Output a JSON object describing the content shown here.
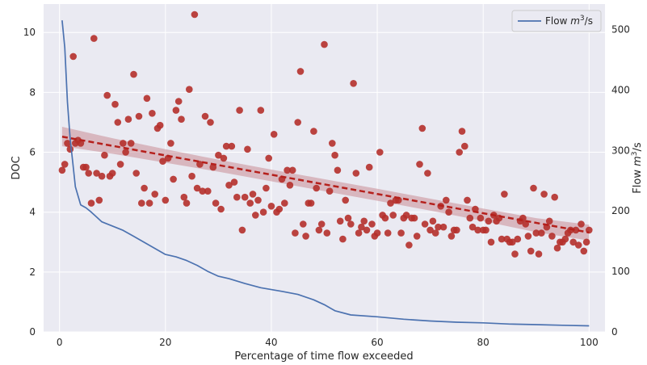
{
  "chart_data": {
    "type": "scatter",
    "xlabel": "Percentage of time flow exceeded",
    "ylabel_left": "DOC",
    "ylabel_right_prefix": "Flow ",
    "ylabel_right_unit": "m",
    "ylabel_right_exp": "3",
    "ylabel_right_suffix": "/s",
    "xlim": [
      -3,
      103
    ],
    "ylim_left": [
      0,
      10.95
    ],
    "ylim_right": [
      0,
      542
    ],
    "xticks": [
      0,
      20,
      40,
      60,
      80,
      100
    ],
    "yticks_left": [
      0,
      2,
      4,
      6,
      8,
      10
    ],
    "yticks_right": [
      0,
      100,
      200,
      300,
      400,
      500
    ],
    "grid": true,
    "legend_position": "top-right",
    "colors": {
      "background": "#eaeaf2",
      "grid": "#ffffff",
      "scatter": "#b5302b",
      "trend": "#b5201c",
      "band": "#c98d96",
      "flow": "#4c72b0"
    },
    "legend": {
      "label_prefix": "Flow ",
      "label_unit": "m",
      "label_exp": "3",
      "label_suffix": "/s"
    },
    "scatter_points": [
      [
        0.5,
        5.4
      ],
      [
        1.0,
        5.6
      ],
      [
        1.5,
        6.3
      ],
      [
        2.0,
        6.1
      ],
      [
        2.6,
        9.2
      ],
      [
        3.0,
        6.3
      ],
      [
        3.5,
        6.4
      ],
      [
        4.0,
        6.3
      ],
      [
        4.5,
        5.5
      ],
      [
        5.0,
        5.5
      ],
      [
        5.5,
        5.3
      ],
      [
        6.0,
        4.3
      ],
      [
        6.5,
        9.8
      ],
      [
        7.0,
        5.3
      ],
      [
        7.5,
        4.4
      ],
      [
        8.0,
        5.2
      ],
      [
        8.5,
        5.9
      ],
      [
        9.0,
        7.9
      ],
      [
        9.5,
        5.2
      ],
      [
        10.0,
        5.3
      ],
      [
        10.5,
        7.6
      ],
      [
        11.0,
        7.0
      ],
      [
        11.5,
        5.6
      ],
      [
        12.0,
        6.3
      ],
      [
        12.5,
        6.0
      ],
      [
        13.0,
        7.1
      ],
      [
        13.5,
        6.3
      ],
      [
        14.0,
        8.6
      ],
      [
        14.5,
        5.3
      ],
      [
        15.0,
        7.2
      ],
      [
        15.5,
        4.3
      ],
      [
        16.0,
        4.8
      ],
      [
        16.5,
        7.8
      ],
      [
        17.0,
        4.3
      ],
      [
        17.5,
        7.3
      ],
      [
        18.0,
        4.6
      ],
      [
        18.5,
        6.8
      ],
      [
        19.0,
        6.9
      ],
      [
        19.5,
        5.7
      ],
      [
        20.0,
        4.4
      ],
      [
        20.5,
        5.8
      ],
      [
        21.0,
        6.3
      ],
      [
        21.5,
        5.1
      ],
      [
        22.0,
        7.4
      ],
      [
        22.5,
        7.7
      ],
      [
        23.0,
        7.1
      ],
      [
        23.5,
        4.5
      ],
      [
        24.0,
        4.3
      ],
      [
        24.5,
        8.1
      ],
      [
        25.0,
        5.2
      ],
      [
        25.5,
        10.6
      ],
      [
        26.0,
        4.8
      ],
      [
        26.5,
        5.6
      ],
      [
        27.0,
        4.7
      ],
      [
        27.5,
        7.2
      ],
      [
        28.0,
        4.7
      ],
      [
        28.5,
        7.0
      ],
      [
        29.0,
        5.5
      ],
      [
        29.5,
        4.3
      ],
      [
        30.0,
        5.9
      ],
      [
        30.5,
        4.1
      ],
      [
        31.0,
        5.8
      ],
      [
        31.5,
        6.2
      ],
      [
        32.0,
        4.9
      ],
      [
        32.5,
        6.2
      ],
      [
        33.0,
        5.0
      ],
      [
        33.5,
        4.5
      ],
      [
        34.0,
        7.4
      ],
      [
        34.5,
        3.4
      ],
      [
        35.0,
        4.5
      ],
      [
        35.5,
        6.1
      ],
      [
        36.0,
        4.3
      ],
      [
        36.5,
        4.6
      ],
      [
        37.0,
        3.9
      ],
      [
        37.5,
        4.4
      ],
      [
        38.0,
        7.4
      ],
      [
        38.5,
        4.0
      ],
      [
        39.0,
        4.8
      ],
      [
        39.5,
        5.8
      ],
      [
        40.0,
        4.2
      ],
      [
        40.5,
        6.6
      ],
      [
        41.0,
        4.0
      ],
      [
        41.5,
        4.1
      ],
      [
        42.0,
        5.1
      ],
      [
        42.5,
        4.3
      ],
      [
        43.0,
        5.4
      ],
      [
        43.5,
        4.9
      ],
      [
        44.0,
        5.4
      ],
      [
        44.5,
        3.3
      ],
      [
        45.0,
        7.0
      ],
      [
        45.5,
        8.7
      ],
      [
        46.0,
        3.6
      ],
      [
        46.5,
        3.2
      ],
      [
        47.0,
        4.3
      ],
      [
        47.5,
        4.3
      ],
      [
        48.0,
        6.7
      ],
      [
        48.5,
        4.8
      ],
      [
        49.0,
        3.4
      ],
      [
        49.5,
        3.6
      ],
      [
        50.0,
        9.6
      ],
      [
        50.5,
        3.3
      ],
      [
        51.0,
        4.7
      ],
      [
        51.5,
        6.3
      ],
      [
        52.0,
        5.9
      ],
      [
        52.5,
        5.4
      ],
      [
        53.0,
        3.7
      ],
      [
        53.5,
        3.1
      ],
      [
        54.0,
        4.4
      ],
      [
        54.5,
        3.8
      ],
      [
        55.0,
        3.6
      ],
      [
        55.5,
        8.3
      ],
      [
        56.0,
        5.3
      ],
      [
        56.5,
        3.3
      ],
      [
        57.0,
        3.5
      ],
      [
        57.5,
        3.7
      ],
      [
        58.0,
        3.4
      ],
      [
        58.5,
        5.5
      ],
      [
        59.0,
        3.6
      ],
      [
        59.5,
        3.2
      ],
      [
        60.0,
        3.3
      ],
      [
        60.5,
        6.0
      ],
      [
        61.0,
        3.9
      ],
      [
        61.5,
        3.8
      ],
      [
        62.0,
        3.3
      ],
      [
        62.5,
        4.3
      ],
      [
        63.0,
        3.9
      ],
      [
        63.5,
        4.4
      ],
      [
        64.0,
        4.4
      ],
      [
        64.5,
        3.3
      ],
      [
        65.0,
        3.8
      ],
      [
        65.5,
        3.9
      ],
      [
        66.0,
        2.9
      ],
      [
        66.5,
        3.8
      ],
      [
        67.0,
        3.8
      ],
      [
        67.5,
        3.2
      ],
      [
        68.0,
        5.6
      ],
      [
        68.5,
        6.8
      ],
      [
        69.0,
        3.6
      ],
      [
        69.5,
        5.3
      ],
      [
        70.0,
        3.4
      ],
      [
        70.5,
        3.7
      ],
      [
        71.0,
        3.3
      ],
      [
        71.5,
        3.5
      ],
      [
        72.0,
        4.2
      ],
      [
        72.5,
        3.5
      ],
      [
        73.0,
        4.4
      ],
      [
        73.5,
        4.0
      ],
      [
        74.0,
        3.2
      ],
      [
        74.5,
        3.4
      ],
      [
        75.0,
        3.4
      ],
      [
        75.5,
        6.0
      ],
      [
        76.0,
        6.7
      ],
      [
        76.5,
        6.2
      ],
      [
        77.0,
        4.4
      ],
      [
        77.5,
        3.8
      ],
      [
        78.0,
        3.5
      ],
      [
        78.5,
        4.1
      ],
      [
        79.0,
        3.4
      ],
      [
        79.5,
        3.8
      ],
      [
        80.0,
        3.4
      ],
      [
        80.5,
        3.4
      ],
      [
        81.0,
        3.7
      ],
      [
        81.5,
        3.0
      ],
      [
        82.0,
        3.9
      ],
      [
        82.5,
        3.7
      ],
      [
        83.0,
        3.8
      ],
      [
        83.5,
        3.1
      ],
      [
        84.0,
        4.6
      ],
      [
        84.5,
        3.1
      ],
      [
        85.0,
        3.0
      ],
      [
        85.5,
        3.0
      ],
      [
        86.0,
        2.6
      ],
      [
        86.5,
        3.1
      ],
      [
        87.0,
        3.7
      ],
      [
        87.5,
        3.8
      ],
      [
        88.0,
        3.6
      ],
      [
        88.5,
        3.2
      ],
      [
        89.0,
        2.7
      ],
      [
        89.5,
        4.8
      ],
      [
        90.0,
        3.3
      ],
      [
        90.5,
        2.6
      ],
      [
        91.0,
        3.3
      ],
      [
        91.5,
        4.6
      ],
      [
        92.0,
        3.5
      ],
      [
        92.5,
        3.7
      ],
      [
        93.0,
        3.2
      ],
      [
        93.5,
        4.5
      ],
      [
        94.0,
        2.8
      ],
      [
        94.5,
        3.0
      ],
      [
        95.0,
        3.0
      ],
      [
        95.5,
        3.1
      ],
      [
        96.0,
        3.3
      ],
      [
        96.5,
        3.4
      ],
      [
        97.0,
        3.0
      ],
      [
        97.5,
        3.4
      ],
      [
        98.0,
        2.9
      ],
      [
        98.5,
        3.6
      ],
      [
        99.0,
        2.7
      ],
      [
        99.5,
        3.0
      ],
      [
        100.0,
        3.4
      ]
    ],
    "trend_line": {
      "x": [
        0.5,
        100
      ],
      "y": [
        6.52,
        3.32
      ]
    },
    "confidence_band": {
      "x": [
        0.5,
        10,
        20,
        30,
        40,
        50,
        60,
        70,
        80,
        90,
        100
      ],
      "upper": [
        6.85,
        6.47,
        6.1,
        5.75,
        5.42,
        5.1,
        4.78,
        4.45,
        4.12,
        3.8,
        3.58
      ],
      "lower": [
        6.2,
        5.95,
        5.65,
        5.35,
        5.03,
        4.7,
        4.38,
        4.05,
        3.7,
        3.33,
        3.05
      ]
    },
    "flow_series": {
      "name": "Flow m3/s",
      "x": [
        0.5,
        1.0,
        1.5,
        2.0,
        2.5,
        3.0,
        4,
        5,
        6,
        7,
        8,
        10,
        12,
        14,
        16,
        18,
        20,
        22,
        24,
        26,
        28,
        30,
        32,
        35,
        38,
        40,
        42,
        45,
        48,
        50,
        52,
        55,
        60,
        65,
        70,
        75,
        80,
        85,
        90,
        95,
        100
      ],
      "y": [
        515,
        470,
        380,
        320,
        280,
        240,
        210,
        205,
        198,
        190,
        182,
        175,
        168,
        158,
        148,
        138,
        128,
        124,
        118,
        110,
        100,
        92,
        88,
        80,
        73,
        70,
        67,
        62,
        53,
        45,
        35,
        28,
        25,
        21,
        18,
        16,
        15,
        13,
        12,
        11,
        10
      ]
    }
  }
}
